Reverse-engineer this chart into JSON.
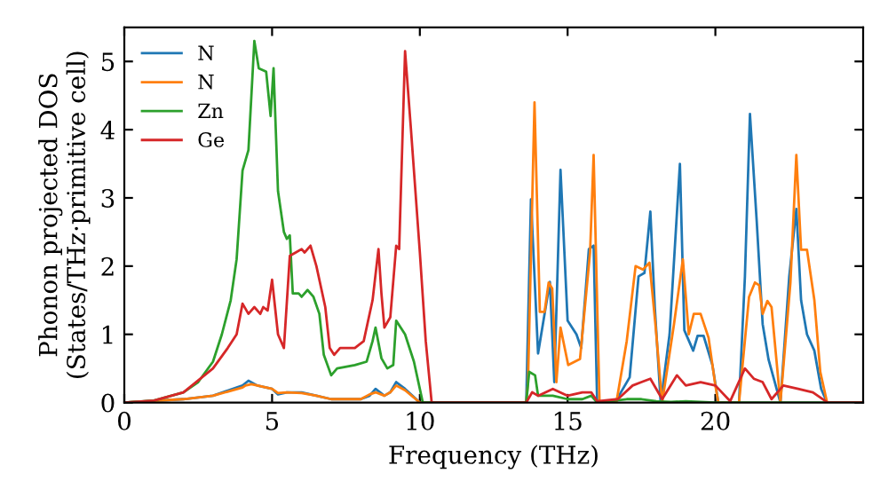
{
  "chart_data": {
    "type": "line",
    "xlabel": "Frequency (THz)",
    "ylabel": "Phonon projected DOS\n(States/THz·primitive cell)",
    "xlim": [
      0,
      25
    ],
    "ylim": [
      0,
      5.5
    ],
    "xticks": [
      0,
      5,
      10,
      15,
      20
    ],
    "yticks": [
      0,
      1,
      2,
      3,
      4,
      5
    ],
    "grid": false,
    "legend": "top left",
    "marker": "none",
    "line_style": "solid",
    "series": [
      {
        "name": "N",
        "color": "#1f77b4",
        "x": [
          0,
          2,
          3,
          4,
          4.2,
          4.5,
          5,
          5.2,
          5.5,
          6,
          6.5,
          7,
          7.5,
          8,
          8.3,
          8.5,
          8.8,
          9.0,
          9.2,
          9.5,
          10,
          13.6,
          13.76,
          14.0,
          14.4,
          14.55,
          14.76,
          15.0,
          15.3,
          15.46,
          15.72,
          15.88,
          16.0,
          16.6,
          17.1,
          17.4,
          17.6,
          17.8,
          17.95,
          18.15,
          18.45,
          18.8,
          18.95,
          19.25,
          19.4,
          19.6,
          19.9,
          20.1,
          20.8,
          21.0,
          21.17,
          21.4,
          21.6,
          21.8,
          22.2,
          22.5,
          22.74,
          22.9,
          23.1,
          23.35,
          23.58,
          23.78,
          25
        ],
        "values": [
          0,
          0.05,
          0.1,
          0.25,
          0.32,
          0.25,
          0.2,
          0.12,
          0.15,
          0.15,
          0.1,
          0.05,
          0.05,
          0.05,
          0.1,
          0.2,
          0.1,
          0.15,
          0.3,
          0.2,
          0,
          0,
          2.98,
          0.72,
          1.77,
          0.3,
          3.41,
          1.2,
          1.0,
          0.8,
          2.25,
          2.3,
          0,
          0,
          0.37,
          1.85,
          1.9,
          2.8,
          1.4,
          0,
          1.0,
          3.5,
          1.06,
          0.76,
          0.98,
          0.98,
          0.55,
          0,
          0,
          1.85,
          4.23,
          2.65,
          1.15,
          0.63,
          0,
          1.85,
          2.84,
          1.5,
          1.0,
          0.76,
          0.2,
          0,
          0
        ]
      },
      {
        "name": "N",
        "color": "#ff7f0e",
        "x": [
          0,
          2,
          3,
          4,
          4.1,
          4.3,
          4.5,
          5,
          5.2,
          5.5,
          6,
          6.5,
          7,
          7.5,
          8,
          8.3,
          8.5,
          8.8,
          9.0,
          9.2,
          9.5,
          10,
          13.6,
          13.66,
          13.88,
          14.06,
          14.22,
          14.36,
          14.48,
          14.62,
          14.76,
          15.02,
          15.42,
          15.76,
          15.88,
          16.08,
          16.65,
          17.0,
          17.3,
          17.55,
          17.77,
          17.97,
          18.2,
          18.6,
          18.9,
          19.1,
          19.27,
          19.5,
          19.77,
          20.0,
          20.1,
          20.8,
          21.14,
          21.34,
          21.48,
          21.6,
          21.76,
          21.9,
          22.2,
          22.54,
          22.74,
          22.9,
          23.1,
          23.35,
          23.55,
          23.78,
          25
        ],
        "values": [
          0,
          0.05,
          0.1,
          0.22,
          0.25,
          0.27,
          0.25,
          0.2,
          0.14,
          0.15,
          0.14,
          0.1,
          0.05,
          0.05,
          0.05,
          0.12,
          0.15,
          0.1,
          0.15,
          0.25,
          0.18,
          0,
          0,
          0.3,
          4.4,
          1.33,
          1.33,
          1.76,
          1.67,
          0.3,
          1.1,
          0.55,
          0.64,
          2.2,
          3.63,
          0,
          0,
          0.9,
          2.0,
          1.95,
          2.05,
          1.15,
          0,
          1.15,
          2.1,
          1.0,
          1.3,
          1.3,
          0.95,
          0.25,
          0,
          0,
          1.55,
          1.76,
          1.72,
          1.3,
          1.49,
          1.4,
          0,
          1.76,
          3.63,
          2.24,
          2.24,
          1.5,
          0.45,
          0,
          0
        ]
      },
      {
        "name": "Zn",
        "color": "#2ca02c",
        "x": [
          0,
          1,
          2,
          2.5,
          3,
          3.3,
          3.6,
          3.8,
          4.0,
          4.2,
          4.4,
          4.55,
          4.8,
          4.95,
          5.05,
          5.2,
          5.4,
          5.5,
          5.6,
          5.7,
          5.9,
          6.0,
          6.2,
          6.4,
          6.6,
          6.75,
          7.0,
          7.2,
          7.8,
          8.2,
          8.4,
          8.5,
          8.7,
          8.9,
          9.1,
          9.2,
          9.5,
          9.8,
          10.1,
          13.6,
          13.7,
          13.9,
          14.0,
          14.5,
          15.0,
          15.5,
          15.8,
          16.0,
          17,
          17.5,
          18,
          18.5,
          19,
          20,
          25
        ],
        "values": [
          0,
          0.03,
          0.15,
          0.3,
          0.6,
          1.0,
          1.5,
          2.1,
          3.4,
          3.7,
          5.3,
          4.9,
          4.85,
          4.2,
          4.9,
          3.1,
          2.5,
          2.4,
          2.45,
          1.6,
          1.6,
          1.55,
          1.65,
          1.55,
          1.3,
          0.7,
          0.4,
          0.5,
          0.55,
          0.6,
          0.9,
          1.1,
          0.65,
          0.5,
          0.55,
          1.2,
          1.0,
          0.6,
          0,
          0,
          0.45,
          0.4,
          0.1,
          0.1,
          0.05,
          0.05,
          0.1,
          0,
          0.05,
          0.05,
          0.02,
          0.01,
          0.02,
          0,
          0
        ]
      },
      {
        "name": "Ge",
        "color": "#d62728",
        "x": [
          0,
          1,
          2,
          3,
          3.5,
          3.8,
          4.0,
          4.2,
          4.4,
          4.6,
          4.7,
          4.85,
          5.0,
          5.2,
          5.4,
          5.6,
          5.8,
          6.0,
          6.1,
          6.3,
          6.5,
          6.8,
          6.95,
          7.1,
          7.3,
          7.8,
          8.1,
          8.4,
          8.6,
          8.7,
          8.8,
          9.0,
          9.2,
          9.3,
          9.5,
          9.7,
          10.0,
          10.2,
          10.4,
          13.6,
          13.8,
          14.0,
          14.5,
          15.0,
          15.5,
          15.8,
          16.0,
          16.7,
          17.2,
          17.5,
          17.8,
          18.2,
          18.7,
          19.0,
          19.5,
          20.0,
          20.5,
          21.0,
          21.3,
          21.6,
          21.9,
          22.3,
          22.8,
          23.3,
          23.8,
          25
        ],
        "values": [
          0,
          0.03,
          0.15,
          0.5,
          0.8,
          1.0,
          1.45,
          1.3,
          1.4,
          1.3,
          1.4,
          1.35,
          1.8,
          1.0,
          0.8,
          2.15,
          2.2,
          2.25,
          2.2,
          2.3,
          2.0,
          1.4,
          0.8,
          0.7,
          0.8,
          0.8,
          0.9,
          1.5,
          2.25,
          1.6,
          1.1,
          1.25,
          2.3,
          2.25,
          5.15,
          4.0,
          2.2,
          0.9,
          0,
          0,
          0.15,
          0.1,
          0.2,
          0.1,
          0.15,
          0.15,
          0.02,
          0.05,
          0.25,
          0.3,
          0.35,
          0.05,
          0.4,
          0.25,
          0.3,
          0.25,
          0.02,
          0.5,
          0.35,
          0.3,
          0.05,
          0.25,
          0.2,
          0.15,
          0,
          0
        ]
      }
    ]
  }
}
